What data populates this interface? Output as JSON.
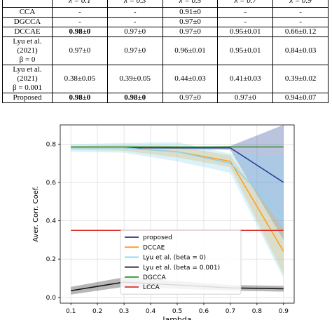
{
  "table": {
    "header": [
      "",
      "λ = 0.1",
      "λ = 0.3",
      "λ = 0.5",
      "λ = 0.7",
      "λ = 0.9"
    ],
    "rows": [
      {
        "label": "CCA",
        "cells": [
          "-",
          "-",
          "0.91±0",
          "-",
          "-"
        ],
        "bold": []
      },
      {
        "label": "DGCCA",
        "cells": [
          "-",
          "-",
          "0.97±0",
          "-",
          "-"
        ],
        "bold": []
      },
      {
        "label": "DCCAE",
        "cells": [
          "0.98±0",
          "0.97±0",
          "0.97±0",
          "0.95±0.01",
          "0.66±0.12"
        ],
        "bold": [
          0
        ]
      },
      {
        "label": "Lyu et al.\n(2021)\nβ = 0",
        "cells": [
          "0.97±0",
          "0.97±0",
          "0.96±0.01",
          "0.95±0.01",
          "0.84±0.03"
        ],
        "bold": []
      },
      {
        "label": "Lyu et al.\n(2021)\nβ = 0.001",
        "cells": [
          "0.38±0.05",
          "0.39±0.05",
          "0.44±0.03",
          "0.41±0.03",
          "0.39±0.02"
        ],
        "bold": []
      },
      {
        "label": "Proposed",
        "cells": [
          "0.98±0",
          "0.98±0",
          "0.97±0",
          "0.97±0",
          "0.94±0.07"
        ],
        "bold": [
          0,
          1
        ]
      }
    ]
  },
  "chart_data": {
    "type": "line",
    "xlabel": "lambda",
    "ylabel": "Aver. Corr. Coef.",
    "xlim": [
      0.06,
      0.94
    ],
    "ylim": [
      -0.03,
      0.9
    ],
    "xticks": [
      0.1,
      0.2,
      0.3,
      0.4,
      0.5,
      0.6,
      0.7,
      0.8,
      0.9
    ],
    "xtick_labels": [
      "0.1",
      "0.2",
      "0.3",
      "0.4",
      "0.5",
      "0.6",
      "0.7",
      "0.8",
      "0.9"
    ],
    "yticks": [
      0.0,
      0.2,
      0.4,
      0.6,
      0.8
    ],
    "ytick_labels": [
      "0.0",
      "0.2",
      "0.4",
      "0.6",
      "0.8"
    ],
    "grid": true,
    "legend_position": "lower-center",
    "x": [
      0.1,
      0.3,
      0.5,
      0.7,
      0.9
    ],
    "series": [
      {
        "name": "proposed",
        "color": "#1f3a93",
        "values": [
          0.78,
          0.78,
          0.78,
          0.78,
          0.6
        ],
        "lower": [
          0.78,
          0.78,
          0.775,
          0.77,
          0.3
        ],
        "upper": [
          0.78,
          0.78,
          0.785,
          0.79,
          0.9
        ]
      },
      {
        "name": "DCCAE",
        "color": "#ff9e1b",
        "values": [
          0.78,
          0.78,
          0.76,
          0.71,
          0.24
        ],
        "lower": [
          0.77,
          0.765,
          0.73,
          0.68,
          0.12
        ],
        "upper": [
          0.79,
          0.795,
          0.79,
          0.74,
          0.36
        ]
      },
      {
        "name": "Lyu et al. (beta = 0)",
        "color": "#87d4f2",
        "values": [
          0.78,
          0.78,
          0.76,
          0.7,
          0.42
        ],
        "lower": [
          0.76,
          0.755,
          0.71,
          0.65,
          0.1
        ],
        "upper": [
          0.8,
          0.805,
          0.81,
          0.75,
          0.74
        ]
      },
      {
        "name": "Lyu et al. (beta = 0.001)",
        "color": "#111111",
        "values": [
          0.035,
          0.08,
          0.065,
          0.05,
          0.045
        ],
        "lower": [
          0.015,
          0.055,
          0.045,
          0.035,
          0.03
        ],
        "upper": [
          0.055,
          0.105,
          0.085,
          0.065,
          0.06
        ]
      },
      {
        "name": "DGCCA",
        "color": "#2e8b2e",
        "values": [
          0.785,
          0.785,
          0.785,
          0.785,
          0.785
        ],
        "lower": null,
        "upper": null
      },
      {
        "name": "LCCA",
        "color": "#d9332b",
        "values": [
          0.35,
          0.35,
          0.35,
          0.35,
          0.35
        ],
        "lower": null,
        "upper": null
      }
    ]
  }
}
